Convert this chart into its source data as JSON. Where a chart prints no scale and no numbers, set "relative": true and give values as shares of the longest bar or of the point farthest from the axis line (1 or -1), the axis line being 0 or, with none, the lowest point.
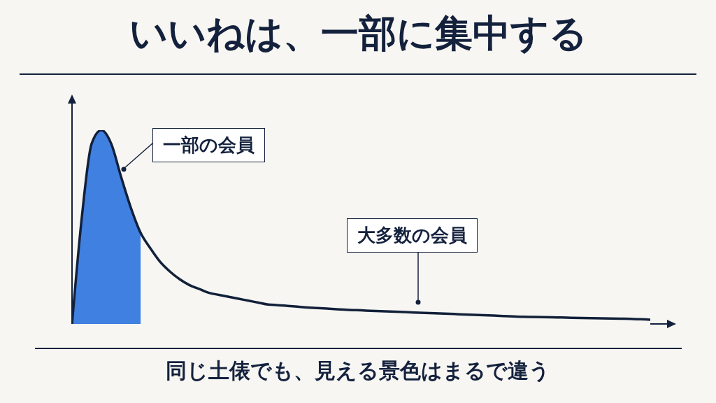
{
  "chart_data": {
    "type": "line",
    "title": "いいねは、一部に集中する",
    "relative": true,
    "categories": [
      null,
      null,
      null,
      null,
      null,
      null,
      null,
      null,
      null,
      null,
      null,
      null,
      null,
      null,
      null,
      null,
      null,
      null,
      null,
      null,
      null,
      null,
      null,
      null,
      null,
      null,
      null,
      null,
      null,
      null,
      null,
      null,
      null,
      null,
      null,
      null,
      null,
      null,
      null,
      null,
      null,
      null,
      null,
      null,
      null,
      null,
      null,
      null,
      null,
      null,
      null,
      null,
      null,
      null,
      null,
      null,
      null,
      null,
      null,
      null
    ],
    "series": [
      {
        "type": "area",
        "color": "#4080e0",
        "values": [
          0,
          0.55,
          0.93,
          1,
          0.93,
          0.76,
          0.6,
          0.47,
          null,
          null,
          null,
          null,
          null,
          null,
          null,
          null,
          null,
          null,
          null,
          null,
          null,
          null,
          null,
          null,
          null,
          null,
          null,
          null,
          null,
          null,
          null,
          null,
          null,
          null,
          null,
          null,
          null,
          null,
          null,
          null,
          null,
          null,
          null,
          null,
          null,
          null,
          null,
          null,
          null,
          null,
          null,
          null,
          null,
          null,
          null,
          null,
          null,
          null,
          null,
          null
        ]
      },
      {
        "color": "#12203a",
        "values": [
          0,
          0.55,
          0.93,
          1,
          0.93,
          0.76,
          0.6,
          0.47,
          0.39,
          0.32,
          0.27,
          0.23,
          0.2,
          0.18,
          0.16,
          0.15,
          0.14,
          0.13,
          0.12,
          0.11,
          0.1,
          0.097,
          0.093,
          0.089,
          0.085,
          0.082,
          0.079,
          0.076,
          0.073,
          0.071,
          0.069,
          0.067,
          0.065,
          0.063,
          0.061,
          0.059,
          0.057,
          0.055,
          0.053,
          0.051,
          0.049,
          0.047,
          0.045,
          0.043,
          0.041,
          0.039,
          0.037,
          0.036,
          0.035,
          0.034,
          0.033,
          0.032,
          0.031,
          0.03,
          0.029,
          0.028,
          0.027,
          0.026,
          0.024,
          0.022
        ]
      }
    ],
    "annotations": [
      "一部の会員",
      "大多数の会員",
      "同じ土俵でも、見える景色はまるで違う"
    ]
  }
}
